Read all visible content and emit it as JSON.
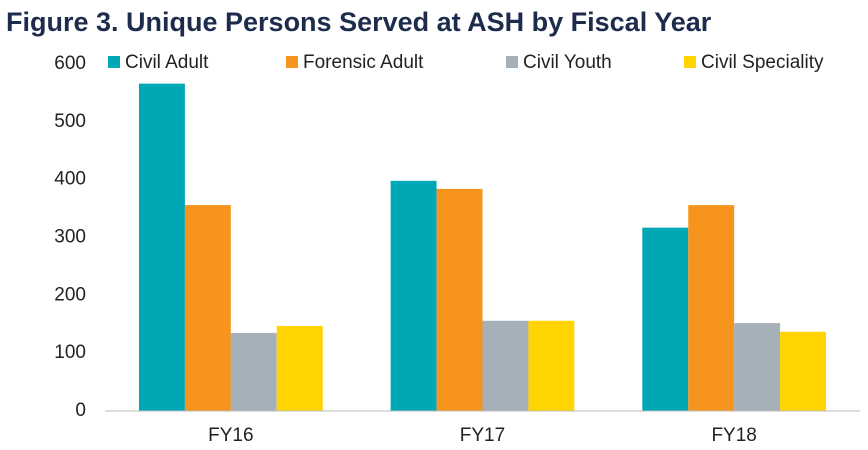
{
  "chart_data": {
    "type": "bar",
    "title": "Figure 3. Unique Persons Served at ASH by Fiscal Year",
    "categories": [
      "FY16",
      "FY17",
      "FY18"
    ],
    "series": [
      {
        "name": "Civil Adult",
        "color": "#00a7b5",
        "values": [
          566,
          398,
          317
        ]
      },
      {
        "name": "Forensic Adult",
        "color": "#f7941d",
        "values": [
          356,
          384,
          356
        ]
      },
      {
        "name": "Civil Youth",
        "color": "#a5b0b8",
        "values": [
          135,
          156,
          152
        ]
      },
      {
        "name": "Civil Speciality",
        "color": "#ffd400",
        "values": [
          147,
          156,
          137
        ]
      }
    ],
    "ylim": [
      0,
      600
    ],
    "yticks": [
      0,
      100,
      200,
      300,
      400,
      500,
      600
    ],
    "grid": false,
    "legend": "top"
  }
}
